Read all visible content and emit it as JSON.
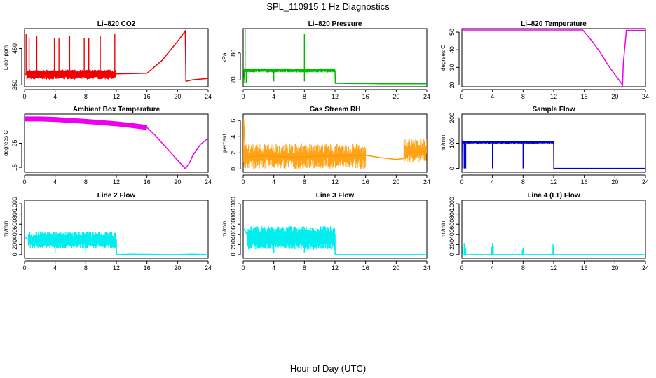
{
  "page": {
    "title": "SPL_110915  1 Hz Diagnostics",
    "xlabel": "Hour of Day (UTC)"
  },
  "chart_data": [
    {
      "id": "co2",
      "type": "line",
      "title": "Li–820 CO2",
      "ylabel": "Licor ppm",
      "xlim": [
        0,
        24
      ],
      "xticks": [
        0,
        4,
        8,
        12,
        16,
        20,
        24
      ],
      "ylim": [
        345,
        505
      ],
      "yticks": [
        350,
        450
      ],
      "color": "#ee0000",
      "series": [
        {
          "x": [
            0,
            0.5,
            1,
            2,
            3,
            4,
            5,
            6,
            7,
            8,
            9,
            10,
            11,
            12,
            14,
            16,
            18,
            20,
            21,
            21.1,
            21.5,
            22,
            23,
            24
          ],
          "y": [
            378,
            382,
            384,
            385,
            386,
            386,
            387,
            387,
            388,
            388,
            388,
            388,
            388,
            380,
            381,
            382,
            418,
            470,
            498,
            360,
            362,
            364,
            366,
            368
          ]
        }
      ],
      "band": {
        "x0": 0.3,
        "x1": 12,
        "y0": 365,
        "y1": 392
      },
      "spikes": [
        {
          "x": 0.2,
          "y": 490
        },
        {
          "x": 0.6,
          "y": 480
        },
        {
          "x": 1.6,
          "y": 485
        },
        {
          "x": 3.9,
          "y": 480
        },
        {
          "x": 4.5,
          "y": 480
        },
        {
          "x": 5.9,
          "y": 485
        },
        {
          "x": 7.8,
          "y": 480
        },
        {
          "x": 8.4,
          "y": 480
        },
        {
          "x": 9.9,
          "y": 485
        },
        {
          "x": 11.8,
          "y": 490
        }
      ]
    },
    {
      "id": "pressure",
      "type": "line",
      "title": "Li–820 Pressure",
      "ylabel": "kPa",
      "xlim": [
        0,
        24
      ],
      "xticks": [
        0,
        4,
        8,
        12,
        16,
        20,
        24
      ],
      "ylim": [
        67.5,
        89
      ],
      "yticks": [
        70,
        80
      ],
      "color": "#00bb00",
      "series": [
        {
          "x": [
            0,
            0.2,
            0.5,
            1,
            2,
            4,
            6,
            8,
            10,
            12,
            12.05,
            14,
            16,
            18,
            20,
            22,
            24
          ],
          "y": [
            69,
            74,
            74,
            74,
            74,
            73.8,
            73.6,
            73.5,
            73.5,
            73.5,
            68.8,
            68.7,
            68.7,
            68.6,
            68.6,
            68.6,
            68.6
          ]
        }
      ],
      "band": {
        "x0": 0,
        "x1": 12,
        "y0": 72.8,
        "y1": 74.3
      },
      "spikes": [
        {
          "x": 0.25,
          "y": 89
        },
        {
          "x": 8.0,
          "y": 87
        }
      ],
      "dips": [
        {
          "x": 0.2,
          "y": 69
        },
        {
          "x": 0.4,
          "y": 69
        },
        {
          "x": 4.0,
          "y": 69.5
        },
        {
          "x": 8.0,
          "y": 69.5
        }
      ]
    },
    {
      "id": "licor_temp",
      "type": "line",
      "title": "Li–820 Temperature",
      "ylabel": "degrees C",
      "xlim": [
        0,
        24
      ],
      "xticks": [
        0,
        4,
        8,
        12,
        16,
        20,
        24
      ],
      "ylim": [
        19,
        52
      ],
      "yticks": [
        20,
        30,
        40,
        50
      ],
      "color": "#ee00ee",
      "series": [
        {
          "x": [
            0,
            4,
            8,
            12,
            15.8,
            17,
            18,
            19,
            20,
            21,
            21.1,
            21.5,
            22,
            23,
            24
          ],
          "y": [
            51.2,
            51.2,
            51.2,
            51.2,
            51.2,
            45,
            39,
            32,
            26,
            20,
            32,
            51,
            51,
            51,
            51
          ]
        }
      ]
    },
    {
      "id": "box_temp",
      "type": "line",
      "title": "Ambient Box Temperature",
      "ylabel": "degrees C",
      "xlim": [
        0,
        24
      ],
      "xticks": [
        0,
        4,
        8,
        12,
        16,
        20,
        24
      ],
      "ylim": [
        13,
        37
      ],
      "yticks": [
        15,
        25
      ],
      "color": "#ee00ee",
      "series": [
        {
          "x": [
            0,
            2,
            4,
            6,
            8,
            10,
            12,
            14,
            16,
            17,
            18,
            19,
            20,
            21,
            21.5,
            22,
            23,
            24
          ],
          "y": [
            35,
            35,
            34.8,
            34.4,
            34,
            33.5,
            33,
            32.3,
            31.5,
            28.5,
            25,
            21.5,
            18,
            14.5,
            16.5,
            20,
            24.5,
            27
          ]
        }
      ],
      "band": {
        "x0": 0,
        "x1": 16,
        "thickness": 1.0
      }
    },
    {
      "id": "rh",
      "type": "line",
      "title": "Gas Stream RH",
      "ylabel": "percent",
      "xlim": [
        0,
        24
      ],
      "xticks": [
        0,
        4,
        8,
        12,
        16,
        20,
        24
      ],
      "ylim": [
        -0.4,
        6.8
      ],
      "yticks": [
        0,
        2,
        4,
        6
      ],
      "color": "#ff9900",
      "series": [
        {
          "x": [
            0,
            0.05,
            0.3,
            1,
            2,
            4,
            6,
            8,
            10,
            12,
            14,
            16,
            18,
            20,
            21,
            22,
            23,
            24
          ],
          "y": [
            1.5,
            6.2,
            1.5,
            1.5,
            1.6,
            1.6,
            1.5,
            1.5,
            1.6,
            1.6,
            1.6,
            1.7,
            1.4,
            1.2,
            1.3,
            2.0,
            2.0,
            2.2
          ]
        }
      ],
      "noise": [
        {
          "x0": 0,
          "x1": 16,
          "lo": 0,
          "hi": 3.2
        },
        {
          "x0": 21,
          "x1": 24,
          "lo": 0.8,
          "hi": 3.8
        }
      ]
    },
    {
      "id": "sample_flow",
      "type": "line",
      "title": "Sample Flow",
      "ylabel": "ml/min",
      "xlim": [
        0,
        24
      ],
      "xticks": [
        0,
        4,
        8,
        12,
        16,
        20,
        24
      ],
      "ylim": [
        -15,
        215
      ],
      "yticks": [
        0,
        100,
        200
      ],
      "color": "#0000cc",
      "series": [
        {
          "x": [
            0,
            0.02,
            0.2,
            0.5,
            1,
            4,
            8,
            12,
            12.02,
            16,
            20,
            24
          ],
          "y": [
            0,
            110,
            105,
            103,
            103,
            102,
            102,
            103,
            0,
            0,
            0,
            0
          ]
        }
      ],
      "band": {
        "x0": 0.2,
        "x1": 12,
        "y0": 98,
        "y1": 110
      },
      "dips": [
        {
          "x": 0.3,
          "y": 0
        },
        {
          "x": 0.5,
          "y": 0
        },
        {
          "x": 4.0,
          "y": 0
        },
        {
          "x": 8.0,
          "y": 0
        }
      ]
    },
    {
      "id": "line2_flow",
      "type": "line",
      "title": "Line 2 Flow",
      "ylabel": "ml/min",
      "xlim": [
        0,
        24
      ],
      "xticks": [
        0,
        4,
        8,
        12,
        16,
        20,
        24
      ],
      "ylim": [
        -70,
        1070
      ],
      "yticks": [
        0,
        200,
        400,
        600,
        800,
        1000
      ],
      "color": "#00eeee",
      "series": [
        {
          "x": [
            0,
            0.5,
            2,
            4,
            6,
            8,
            10,
            12,
            12.02,
            14,
            16,
            18,
            20,
            22,
            24
          ],
          "y": [
            350,
            300,
            300,
            300,
            300,
            300,
            300,
            300,
            0,
            10,
            5,
            0,
            0,
            10,
            0
          ]
        }
      ],
      "band": {
        "x0": 0.5,
        "x1": 12,
        "y0": 120,
        "y1": 450
      },
      "dips": [
        {
          "x": 4.0,
          "y": 30
        },
        {
          "x": 8.0,
          "y": 30
        }
      ]
    },
    {
      "id": "line3_flow",
      "type": "line",
      "title": "Line 3 Flow",
      "ylabel": "ml/min",
      "xlim": [
        0,
        24
      ],
      "xticks": [
        0,
        4,
        8,
        12,
        16,
        20,
        24
      ],
      "ylim": [
        -70,
        1070
      ],
      "yticks": [
        0,
        200,
        400,
        600,
        800,
        1000
      ],
      "color": "#00eeee",
      "series": [
        {
          "x": [
            0,
            0.5,
            2,
            4,
            6,
            8,
            10,
            12,
            12.02,
            16,
            20,
            24
          ],
          "y": [
            530,
            400,
            400,
            400,
            400,
            400,
            400,
            400,
            0,
            0,
            0,
            0
          ]
        }
      ],
      "band": {
        "x0": 0.5,
        "x1": 12,
        "y0": 100,
        "y1": 560
      },
      "dips": [
        {
          "x": 4.0,
          "y": 40
        },
        {
          "x": 8.0,
          "y": 40
        }
      ]
    },
    {
      "id": "line4_flow",
      "type": "line",
      "title": "Line 4 (LT) Flow",
      "ylabel": "ml/min",
      "xlim": [
        0,
        24
      ],
      "xticks": [
        0,
        4,
        8,
        12,
        16,
        20,
        24
      ],
      "ylim": [
        -70,
        1070
      ],
      "yticks": [
        0,
        200,
        400,
        600,
        800,
        1000
      ],
      "color": "#00eeee",
      "series": [
        {
          "x": [
            0,
            4,
            8,
            12,
            16,
            20,
            24
          ],
          "y": [
            0,
            0,
            0,
            0,
            0,
            0,
            0
          ]
        }
      ],
      "spikes": [
        {
          "x": 0.1,
          "y": 150
        },
        {
          "x": 0.3,
          "y": 230
        },
        {
          "x": 0.5,
          "y": 120
        },
        {
          "x": 3.9,
          "y": 150
        },
        {
          "x": 4.0,
          "y": 230
        },
        {
          "x": 4.1,
          "y": 180
        },
        {
          "x": 7.9,
          "y": 100
        },
        {
          "x": 8.0,
          "y": 140
        },
        {
          "x": 11.9,
          "y": 220
        },
        {
          "x": 12.0,
          "y": 160
        }
      ]
    }
  ]
}
